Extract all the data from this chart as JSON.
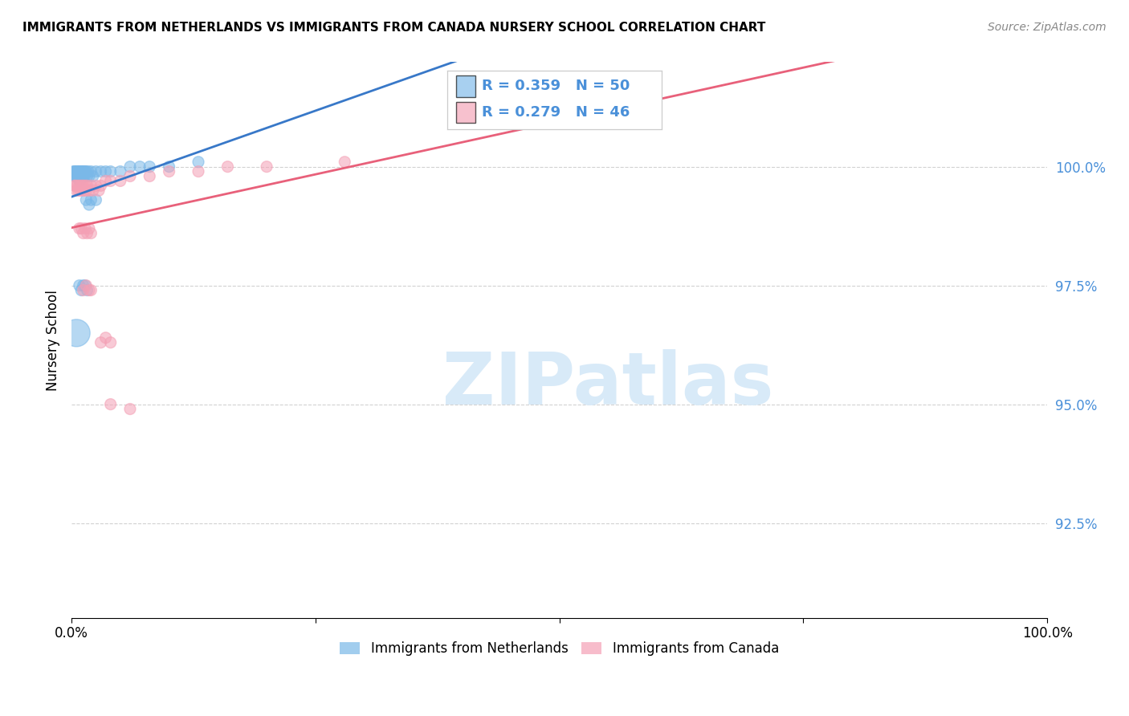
{
  "title": "IMMIGRANTS FROM NETHERLANDS VS IMMIGRANTS FROM CANADA NURSERY SCHOOL CORRELATION CHART",
  "source": "Source: ZipAtlas.com",
  "ylabel": "Nursery School",
  "ytick_labels": [
    "100.0%",
    "97.5%",
    "95.0%",
    "92.5%"
  ],
  "ytick_values": [
    1.0,
    0.975,
    0.95,
    0.925
  ],
  "xlim": [
    0.0,
    1.0
  ],
  "ylim": [
    0.905,
    1.022
  ],
  "xtick_positions": [
    0.0,
    0.25,
    0.5,
    0.75,
    1.0
  ],
  "xtick_labels": [
    "0.0%",
    "",
    "",
    "",
    "100.0%"
  ],
  "legend_blue_label": "Immigrants from Netherlands",
  "legend_pink_label": "Immigrants from Canada",
  "R_blue": 0.359,
  "N_blue": 50,
  "R_pink": 0.279,
  "N_pink": 46,
  "blue_color": "#7ab8e8",
  "pink_color": "#f4a0b5",
  "trend_blue_color": "#3878c8",
  "trend_pink_color": "#e8607a",
  "blue_x": [
    0.002,
    0.003,
    0.003,
    0.004,
    0.004,
    0.005,
    0.005,
    0.006,
    0.006,
    0.007,
    0.007,
    0.008,
    0.008,
    0.009,
    0.009,
    0.01,
    0.01,
    0.011,
    0.011,
    0.012,
    0.012,
    0.013,
    0.013,
    0.014,
    0.015,
    0.016,
    0.017,
    0.018,
    0.02,
    0.022,
    0.025,
    0.03,
    0.035,
    0.04,
    0.05,
    0.06,
    0.07,
    0.08,
    0.1,
    0.13,
    0.008,
    0.01,
    0.012,
    0.014,
    0.016,
    0.005,
    0.015,
    0.018,
    0.02,
    0.025
  ],
  "blue_y": [
    0.999,
    0.999,
    0.998,
    0.998,
    0.999,
    0.999,
    0.998,
    0.999,
    0.998,
    0.999,
    0.998,
    0.999,
    0.997,
    0.998,
    0.999,
    0.999,
    0.998,
    0.999,
    0.998,
    0.999,
    0.998,
    0.999,
    0.998,
    0.999,
    0.999,
    0.998,
    0.999,
    0.998,
    0.999,
    0.998,
    0.999,
    0.999,
    0.999,
    0.999,
    0.999,
    1.0,
    1.0,
    1.0,
    1.0,
    1.001,
    0.975,
    0.974,
    0.975,
    0.975,
    0.974,
    0.965,
    0.993,
    0.992,
    0.993,
    0.993
  ],
  "blue_sizes": [
    100,
    100,
    100,
    100,
    100,
    100,
    100,
    100,
    100,
    100,
    100,
    100,
    100,
    100,
    100,
    100,
    100,
    100,
    100,
    100,
    100,
    100,
    100,
    100,
    100,
    100,
    100,
    100,
    100,
    100,
    100,
    100,
    100,
    100,
    100,
    100,
    100,
    100,
    100,
    100,
    100,
    100,
    100,
    100,
    100,
    600,
    100,
    100,
    100,
    100
  ],
  "pink_x": [
    0.003,
    0.004,
    0.005,
    0.006,
    0.007,
    0.008,
    0.009,
    0.01,
    0.011,
    0.012,
    0.013,
    0.014,
    0.015,
    0.016,
    0.018,
    0.02,
    0.022,
    0.025,
    0.028,
    0.03,
    0.035,
    0.04,
    0.05,
    0.06,
    0.08,
    0.1,
    0.13,
    0.16,
    0.2,
    0.28,
    0.012,
    0.015,
    0.018,
    0.02,
    0.04,
    0.06,
    0.03,
    0.035,
    0.04,
    0.008,
    0.01,
    0.012,
    0.014,
    0.016,
    0.018,
    0.02
  ],
  "pink_y": [
    0.996,
    0.996,
    0.995,
    0.996,
    0.995,
    0.996,
    0.995,
    0.996,
    0.995,
    0.996,
    0.995,
    0.996,
    0.995,
    0.996,
    0.995,
    0.996,
    0.995,
    0.996,
    0.995,
    0.996,
    0.997,
    0.997,
    0.997,
    0.998,
    0.998,
    0.999,
    0.999,
    1.0,
    1.0,
    1.001,
    0.974,
    0.975,
    0.974,
    0.974,
    0.95,
    0.949,
    0.963,
    0.964,
    0.963,
    0.987,
    0.987,
    0.986,
    0.987,
    0.986,
    0.987,
    0.986
  ],
  "pink_sizes": [
    100,
    100,
    100,
    100,
    100,
    100,
    100,
    100,
    100,
    100,
    100,
    100,
    100,
    100,
    100,
    100,
    100,
    100,
    100,
    100,
    100,
    100,
    100,
    100,
    100,
    100,
    100,
    100,
    100,
    100,
    100,
    100,
    100,
    100,
    100,
    100,
    100,
    100,
    100,
    100,
    100,
    100,
    100,
    100,
    100,
    100
  ],
  "watermark_text": "ZIPatlas",
  "watermark_color": "#d8eaf8"
}
